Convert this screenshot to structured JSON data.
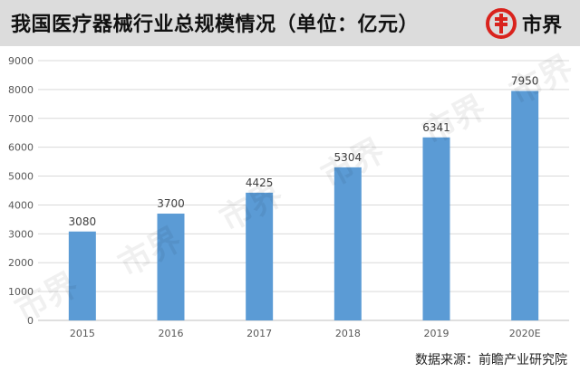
{
  "header": {
    "title": "我国医疗器械行业总规模情况（单位：亿元）",
    "logo_text": "市界",
    "logo_icon": "dollar-circle-icon"
  },
  "footer": {
    "source": "数据来源：前瞻产业研究院"
  },
  "watermark_text": "市界",
  "colors": {
    "bar": "#5b9bd5",
    "title_band": "#dcdcdc",
    "logo_red": "#d9231d",
    "gridline": "#d9d9d9"
  },
  "chart_data": {
    "type": "bar",
    "title": "我国医疗器械行业总规模情况（单位：亿元）",
    "categories": [
      "2015",
      "2016",
      "2017",
      "2018",
      "2019",
      "2020E"
    ],
    "values": [
      3080,
      3700,
      4425,
      5304,
      6341,
      7950
    ],
    "data_labels": [
      "3080",
      "3700",
      "4425",
      "5304",
      "6341",
      "7950"
    ],
    "ylim": [
      0,
      9000
    ],
    "yticks": [
      0,
      1000,
      2000,
      3000,
      4000,
      5000,
      6000,
      7000,
      8000,
      9000
    ],
    "ytick_labels": [
      "0",
      "1000",
      "2000",
      "3000",
      "4000",
      "5000",
      "6000",
      "7000",
      "8000",
      "9000"
    ],
    "grid": true,
    "legend": "none"
  }
}
